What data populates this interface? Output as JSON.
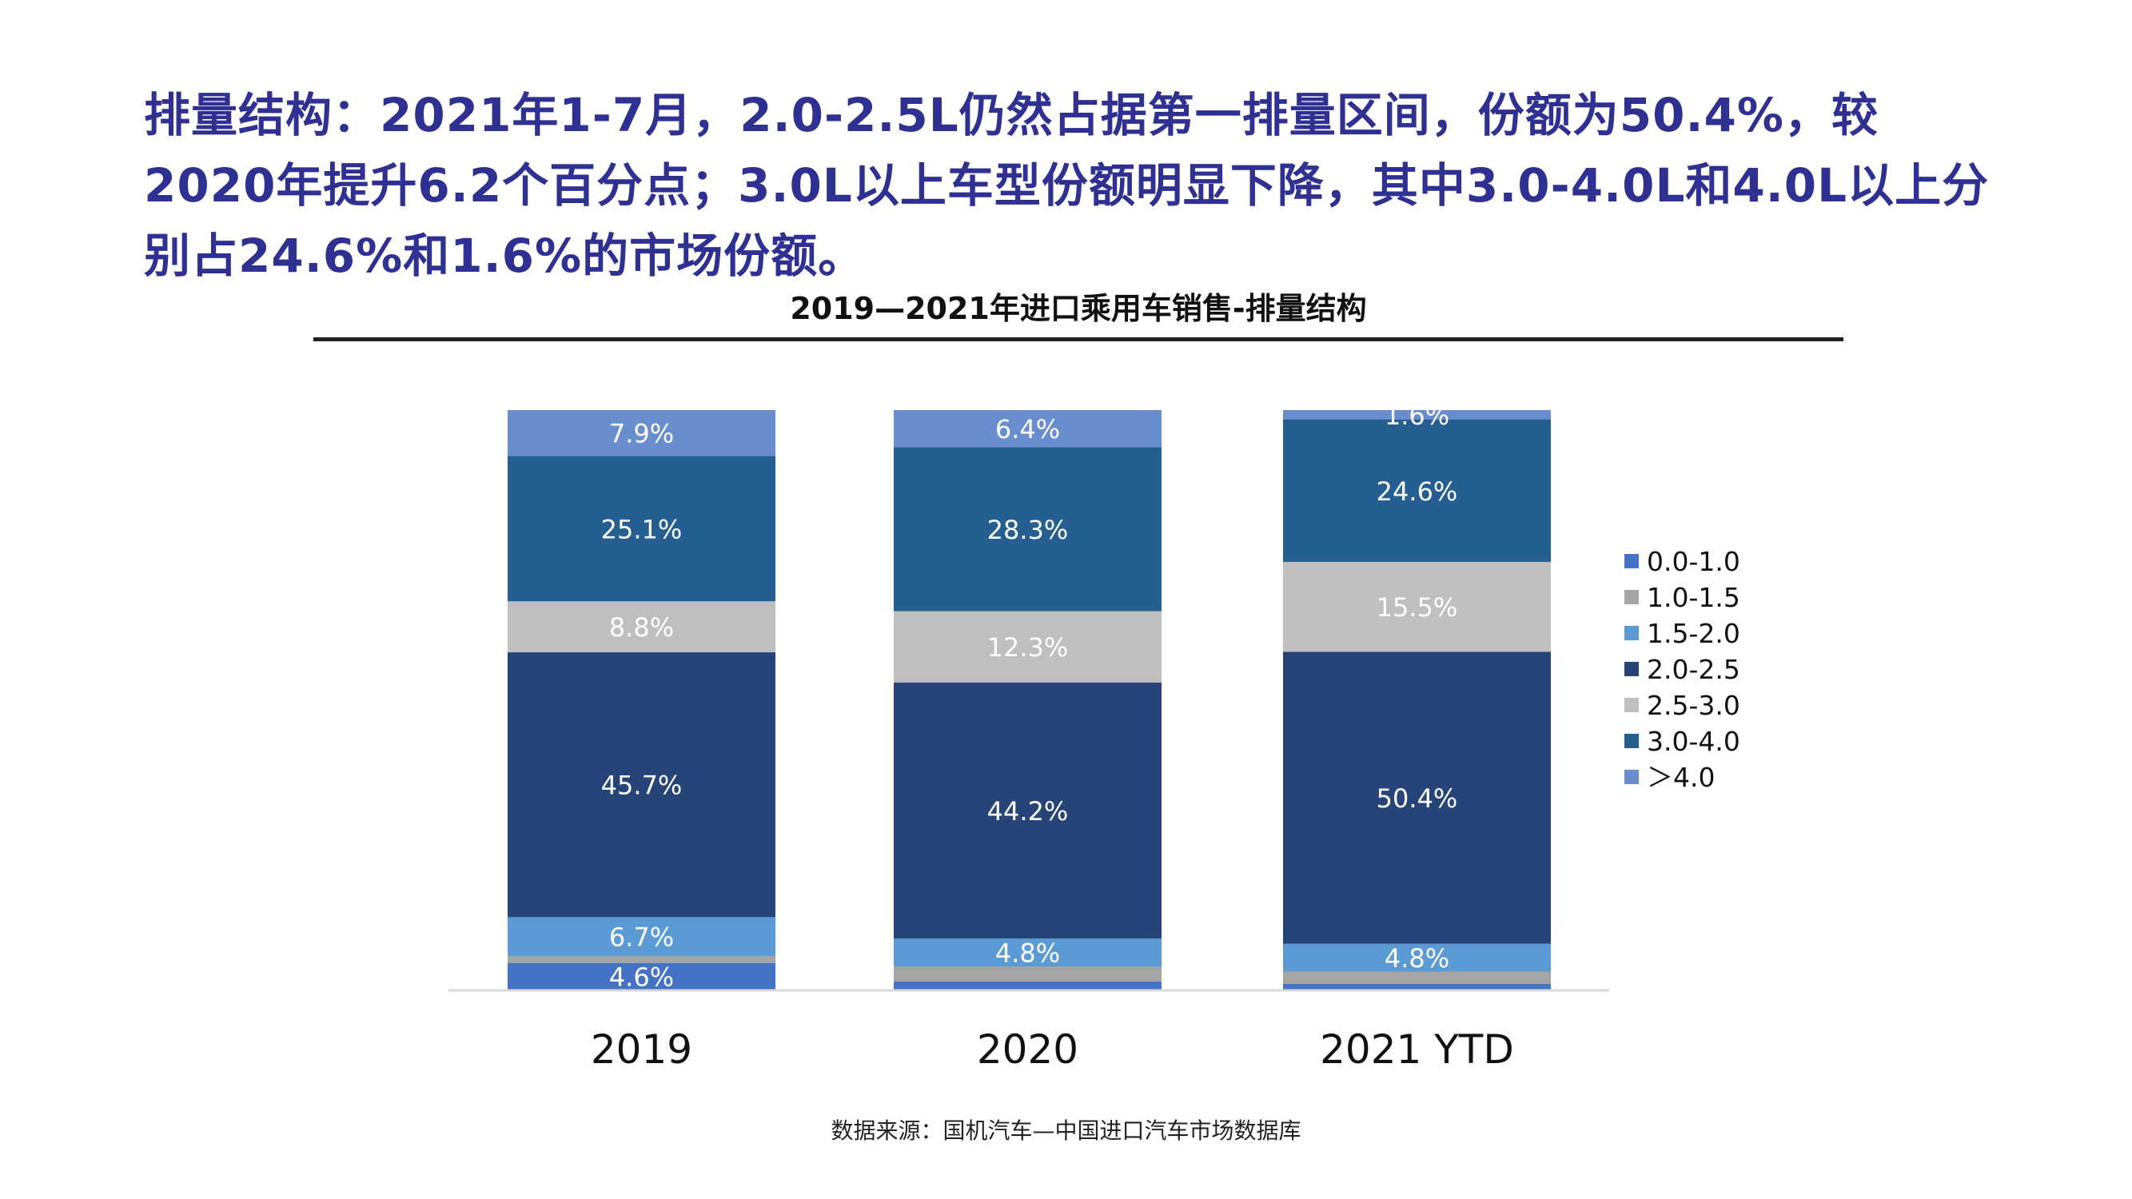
{
  "headline": "排量结构：2021年1-7月，2.0-2.5L仍然占据第一排量区间，份额为50.4%，较2020年提升6.2个百分点；3.0L以上车型份额明显下降，其中3.0-4.0L和4.0L以上分别占24.6%和1.6%的市场份额。",
  "source": "数据来源：国机汽车—中国进口汽车市场数据库",
  "chart_data": {
    "type": "bar",
    "stacked": true,
    "percent": true,
    "title": "2019—2021年进口乘用车销售-排量结构",
    "xlabel": "",
    "ylabel": "",
    "ylim": [
      0,
      100
    ],
    "legend_position": "right",
    "categories": [
      "2019",
      "2020",
      "2021 YTD"
    ],
    "series": [
      {
        "name": "0.0-1.0",
        "color": "#4472c4",
        "values": [
          4.6,
          1.4,
          1.0
        ],
        "labels": [
          "4.6%",
          "",
          ""
        ]
      },
      {
        "name": "1.0-1.5",
        "color": "#a5a5a5",
        "values": [
          1.2,
          2.6,
          2.1
        ],
        "labels": [
          "",
          "",
          ""
        ]
      },
      {
        "name": "1.5-2.0",
        "color": "#5b9bd5",
        "values": [
          6.7,
          4.8,
          4.8
        ],
        "labels": [
          "6.7%",
          "4.8%",
          "4.8%"
        ]
      },
      {
        "name": "2.0-2.5",
        "color": "#264478",
        "values": [
          45.7,
          44.2,
          50.4
        ],
        "labels": [
          "45.7%",
          "44.2%",
          "50.4%"
        ]
      },
      {
        "name": "2.5-3.0",
        "color": "#bfbfbf",
        "values": [
          8.8,
          12.3,
          15.5
        ],
        "labels": [
          "8.8%",
          "12.3%",
          "15.5%"
        ]
      },
      {
        "name": "3.0-4.0",
        "color": "#255e91",
        "values": [
          25.1,
          28.3,
          24.6
        ],
        "labels": [
          "25.1%",
          "28.3%",
          "24.6%"
        ]
      },
      {
        "name": "＞4.0",
        "color": "#698ed0",
        "values": [
          7.9,
          6.4,
          1.6
        ],
        "labels": [
          "7.9%",
          "6.4%",
          "1.6%"
        ]
      }
    ]
  }
}
